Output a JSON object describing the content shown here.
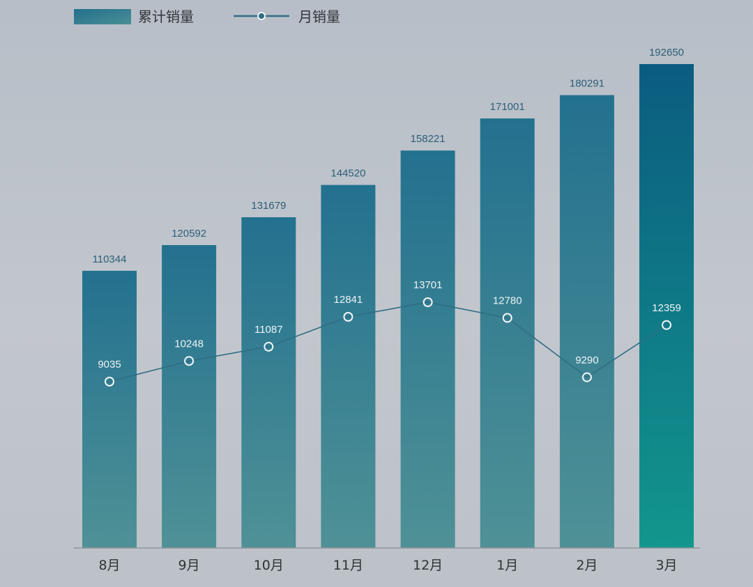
{
  "chart_data": {
    "type": "bar",
    "categories": [
      "8月",
      "9月",
      "10月",
      "11月",
      "12月",
      "1月",
      "2月",
      "3月"
    ],
    "series": [
      {
        "name": "累计销量",
        "type": "bar",
        "values": [
          110344,
          120592,
          131679,
          144520,
          158221,
          171001,
          180291,
          192650
        ]
      },
      {
        "name": "月销量",
        "type": "line",
        "values": [
          9035,
          10248,
          11087,
          12841,
          13701,
          12780,
          9290,
          12359
        ]
      }
    ],
    "legend": "top-left",
    "grid": false,
    "colors": {
      "bar_top": "#23718f",
      "bar_bottom": "#4f9196",
      "highlight_bar_top": "#0b5c80",
      "highlight_bar_bottom": "#12968d",
      "line": "#2f6d84",
      "marker_stroke": "#f2f6f8",
      "bar_label": "#2c5e78",
      "axis": "#8f969c"
    }
  }
}
